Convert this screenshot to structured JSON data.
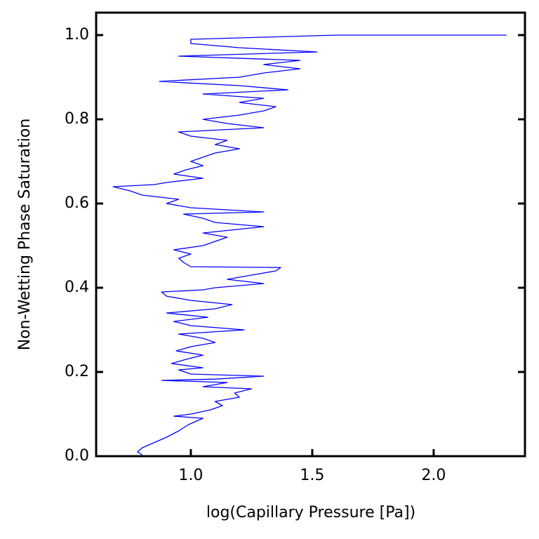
{
  "chart_data": {
    "type": "line",
    "x_label": "log(Capillary Pressure [Pa])",
    "y_label": "Non-Wetting Phase Saturation",
    "xlim": [
      0.61,
      2.376
    ],
    "ylim": [
      0,
      1.05
    ],
    "xticks": [
      {
        "value": 1,
        "label": "1.0"
      },
      {
        "value": 1.5,
        "label": "1.5"
      },
      {
        "value": 2,
        "label": "2.0"
      }
    ],
    "yticks": [
      {
        "value": 0,
        "label": "0.0"
      },
      {
        "value": 0.2,
        "label": "0.2"
      },
      {
        "value": 0.4,
        "label": "0.4"
      },
      {
        "value": 0.6,
        "label": "0.6"
      },
      {
        "value": 0.8,
        "label": "0.8"
      },
      {
        "value": 1,
        "label": "1.0"
      }
    ],
    "x": [
      0.8,
      0.78,
      0.8,
      0.84,
      0.9,
      0.95,
      0.99,
      1.05,
      0.93,
      1.0,
      1.08,
      1.13,
      1.1,
      1.2,
      1.18,
      1.25,
      1.05,
      1.15,
      0.88,
      1.1,
      1.3,
      1.0,
      0.95,
      1.05,
      0.92,
      0.98,
      1.05,
      0.94,
      1.0,
      1.1,
      1.05,
      0.95,
      1.22,
      1.0,
      0.93,
      1.07,
      0.9,
      1.1,
      1.17,
      1.0,
      0.9,
      0.88,
      1.05,
      1.1,
      1.3,
      1.15,
      1.25,
      1.35,
      1.37,
      1.0,
      0.97,
      0.95,
      1.0,
      0.93,
      1.05,
      1.1,
      1.15,
      1.05,
      1.3,
      1.1,
      1.05,
      0.97,
      1.3,
      1.0,
      0.9,
      0.95,
      0.8,
      0.75,
      0.68,
      0.85,
      0.9,
      1.05,
      0.93,
      0.98,
      1.05,
      1.0,
      1.05,
      1.1,
      1.2,
      1.1,
      1.15,
      1.0,
      0.95,
      1.3,
      1.15,
      1.05,
      1.2,
      1.3,
      1.35,
      1.2,
      1.3,
      1.05,
      1.4,
      1.2,
      0.87,
      1.2,
      1.3,
      1.45,
      1.3,
      1.45,
      0.95,
      1.52,
      1.2,
      1.0,
      1.0,
      1.3,
      1.6,
      2.3
    ],
    "series": [
      {
        "color": "#0000ff",
        "values": [
          0.003,
          0.01,
          0.02,
          0.03,
          0.045,
          0.06,
          0.075,
          0.09,
          0.095,
          0.1,
          0.11,
          0.12,
          0.13,
          0.14,
          0.15,
          0.16,
          0.165,
          0.175,
          0.18,
          0.183,
          0.19,
          0.195,
          0.205,
          0.21,
          0.22,
          0.23,
          0.24,
          0.25,
          0.26,
          0.27,
          0.28,
          0.29,
          0.3,
          0.31,
          0.32,
          0.33,
          0.34,
          0.35,
          0.36,
          0.37,
          0.38,
          0.39,
          0.395,
          0.4,
          0.41,
          0.42,
          0.43,
          0.44,
          0.448,
          0.45,
          0.46,
          0.47,
          0.48,
          0.49,
          0.5,
          0.51,
          0.52,
          0.53,
          0.545,
          0.555,
          0.565,
          0.575,
          0.58,
          0.59,
          0.6,
          0.61,
          0.62,
          0.63,
          0.64,
          0.645,
          0.65,
          0.66,
          0.67,
          0.68,
          0.69,
          0.7,
          0.71,
          0.72,
          0.73,
          0.74,
          0.75,
          0.76,
          0.77,
          0.78,
          0.79,
          0.8,
          0.81,
          0.82,
          0.83,
          0.84,
          0.85,
          0.86,
          0.87,
          0.88,
          0.89,
          0.9,
          0.91,
          0.92,
          0.93,
          0.94,
          0.95,
          0.96,
          0.97,
          0.98,
          0.99,
          0.995,
          1.0,
          1.0
        ]
      }
    ]
  }
}
